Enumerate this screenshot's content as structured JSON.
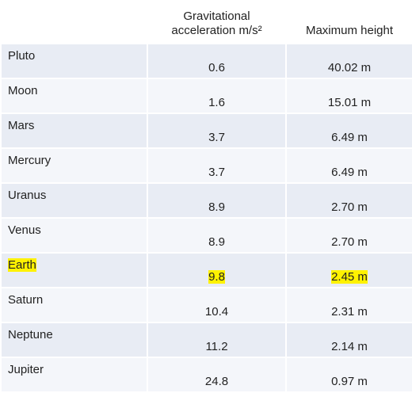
{
  "table": {
    "header": [
      "",
      "Gravitational acceleration m/s²",
      "Maximum height"
    ],
    "rows": [
      [
        "Pluto",
        "0.6",
        "40.02 m"
      ],
      [
        "Moon",
        "1.6",
        "15.01 m"
      ],
      [
        "Mars",
        "3.7",
        "6.49 m"
      ],
      [
        "Mercury",
        "3.7",
        "6.49 m"
      ],
      [
        "Uranus",
        "8.9",
        "2.70 m"
      ],
      [
        "Venus",
        "8.9",
        "2.70 m"
      ],
      [
        "Earth",
        "9.8",
        "2.45 m"
      ],
      [
        "Saturn",
        "10.4",
        "2.31 m"
      ],
      [
        "Neptune",
        "11.2",
        "2.14 m"
      ],
      [
        "Jupiter",
        "24.8",
        "0.97 m"
      ]
    ]
  }
}
